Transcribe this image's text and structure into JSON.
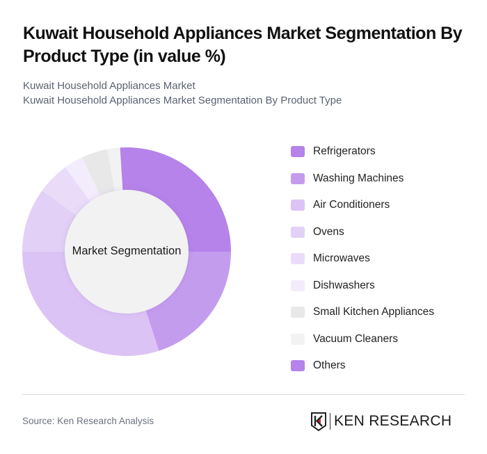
{
  "header": {
    "title": "Kuwait Household Appliances Market Segmentation By Product Type (in value %)",
    "subtitle_line1": "Kuwait Household Appliances Market",
    "subtitle_line2": "Kuwait Household Appliances Market Segmentation By Product Type"
  },
  "chart": {
    "center_label": "Market Segmentation"
  },
  "chart_data": {
    "type": "pie",
    "subtype": "donut",
    "title": "Kuwait Household Appliances Market Segmentation By Product Type (in value %)",
    "center_label": "Market Segmentation",
    "categories": [
      "Refrigerators",
      "Washing Machines",
      "Air Conditioners",
      "Ovens",
      "Microwaves",
      "Dishwashers",
      "Small Kitchen Appliances",
      "Vacuum Cleaners",
      "Others"
    ],
    "values": [
      25,
      20,
      30,
      10,
      5,
      3,
      4,
      2,
      1
    ],
    "colors": [
      "#b583ea",
      "#c49cee",
      "#dcc3f5",
      "#e2d0f6",
      "#eadcf9",
      "#f3ecfc",
      "#e8e8e8",
      "#f2f2f2",
      "#b583ea"
    ],
    "unit": "%",
    "legend_position": "right"
  },
  "legend": {
    "items": [
      {
        "label": "Refrigerators",
        "color": "#b583ea"
      },
      {
        "label": "Washing Machines",
        "color": "#c49cee"
      },
      {
        "label": "Air Conditioners",
        "color": "#dcc3f5"
      },
      {
        "label": "Ovens",
        "color": "#e2d0f6"
      },
      {
        "label": "Microwaves",
        "color": "#eadcf9"
      },
      {
        "label": "Dishwashers",
        "color": "#f3ecfc"
      },
      {
        "label": "Small Kitchen Appliances",
        "color": "#e8e8e8"
      },
      {
        "label": "Vacuum Cleaners",
        "color": "#f2f2f2"
      },
      {
        "label": "Others",
        "color": "#b583ea"
      }
    ]
  },
  "footer": {
    "source": "Source: Ken Research Analysis",
    "logo_text": "KEN RESEARCH"
  }
}
